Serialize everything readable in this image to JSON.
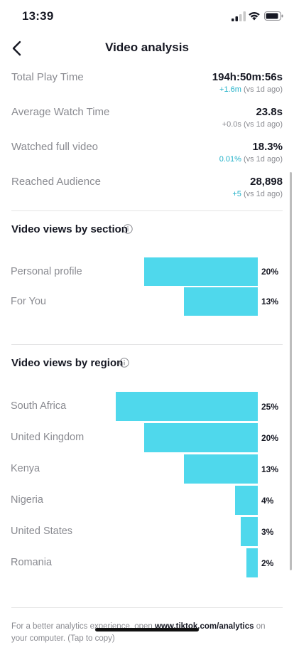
{
  "status": {
    "time": "13:39"
  },
  "header": {
    "title": "Video analysis"
  },
  "stats": [
    {
      "label": "Total Play Time",
      "value": "194h:50m:56s",
      "delta": "+1.6m",
      "delta_suffix": " (vs 1d ago)"
    },
    {
      "label": "Average Watch Time",
      "value": "23.8s",
      "delta": "+0.0s",
      "delta_suffix": " (vs 1d ago)"
    },
    {
      "label": "Watched full video",
      "value": "18.3%",
      "delta": "0.01%",
      "delta_suffix": " (vs 1d ago)"
    },
    {
      "label": "Reached Audience",
      "value": "28,898",
      "delta": "+5",
      "delta_suffix": " (vs 1d ago)"
    }
  ],
  "sections": {
    "by_section": {
      "title": "Video views by section",
      "items": [
        {
          "label": "Personal profile",
          "pct": "20%",
          "value": 20
        },
        {
          "label": "For You",
          "pct": "13%",
          "value": 13
        }
      ]
    },
    "by_region": {
      "title": "Video views by region",
      "items": [
        {
          "label": "South Africa",
          "pct": "25%",
          "value": 25
        },
        {
          "label": "United Kingdom",
          "pct": "20%",
          "value": 20
        },
        {
          "label": "Kenya",
          "pct": "13%",
          "value": 13
        },
        {
          "label": "Nigeria",
          "pct": "4%",
          "value": 4
        },
        {
          "label": "United States",
          "pct": "3%",
          "value": 3
        },
        {
          "label": "Romania",
          "pct": "2%",
          "value": 2
        }
      ]
    }
  },
  "footer": {
    "text_before": "For a better analytics experience, open ",
    "link": "www.tiktok.com/analytics",
    "text_after": " on your computer. (Tap to copy)"
  },
  "colors": {
    "bar": "#4fd8ec",
    "positive_delta": "#20b0c8"
  }
}
